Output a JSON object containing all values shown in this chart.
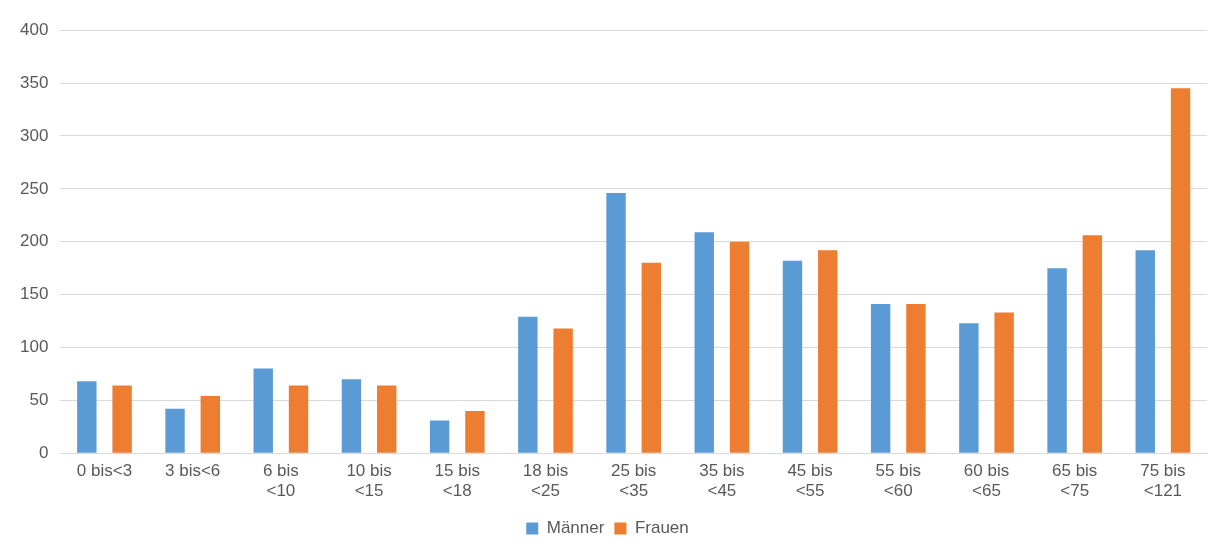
{
  "chart_data": {
    "type": "bar",
    "categories": [
      "0 bis<3",
      "3 bis<6",
      "6 bis <10",
      "10 bis <15",
      "15 bis <18",
      "18 bis <25",
      "25 bis <35",
      "35 bis <45",
      "45 bis <55",
      "55 bis <60",
      "60 bis <65",
      "65 bis <75",
      "75 bis <121"
    ],
    "series": [
      {
        "name": "Männer",
        "color": "#5b9bd5",
        "values": [
          68,
          42,
          80,
          70,
          31,
          129,
          246,
          209,
          182,
          141,
          123,
          175,
          192
        ]
      },
      {
        "name": "Frauen",
        "color": "#ed7d31",
        "values": [
          64,
          54,
          64,
          64,
          40,
          118,
          180,
          200,
          192,
          141,
          133,
          206,
          345
        ]
      }
    ],
    "ylim": [
      0,
      400
    ],
    "yticks": [
      0,
      50,
      100,
      150,
      200,
      250,
      300,
      350,
      400
    ],
    "grid": "y",
    "legend": "bottom"
  }
}
